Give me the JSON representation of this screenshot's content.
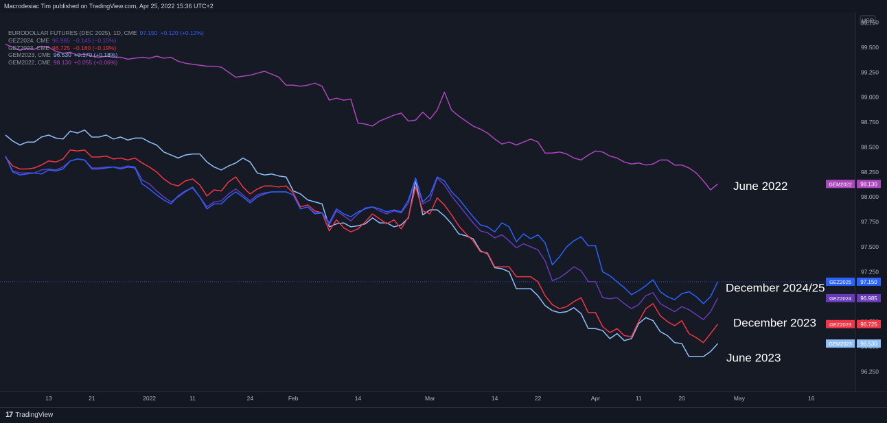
{
  "header": {
    "published_text": "Macrodesiac Tim published on TradingView.com, Apr 25, 2022 15:36 UTC+2"
  },
  "footer": {
    "brand": "TradingView",
    "logo_icon": "tradingview-logo-icon"
  },
  "legend": [
    {
      "symbol": "EURODOLLAR FUTURES (DEC 2025), 1D, CME",
      "value": "97.150",
      "change": "+0.120 (+0.12%)",
      "color": "#2962ff"
    },
    {
      "symbol": "GEZ2024, CME",
      "value": "96.985",
      "change": "−0.145 (−0.15%)",
      "color": "#673ab7"
    },
    {
      "symbol": "GEZ2023, CME",
      "value": "96.725",
      "change": "−0.180 (−0.19%)",
      "color": "#f23645"
    },
    {
      "symbol": "GEM2023, CME",
      "value": "96.530",
      "change": "+0.170 (+0.18%)",
      "color": "#90bff9"
    },
    {
      "symbol": "GEM2022, CME",
      "value": "98.130",
      "change": "+0.055 (+0.06%)",
      "color": "#ab47bc"
    }
  ],
  "chart_data": {
    "type": "line",
    "currency": "USD",
    "ylim": [
      96.05,
      99.85
    ],
    "y_ticks": [
      "99.750",
      "99.500",
      "99.250",
      "99.000",
      "98.750",
      "98.500",
      "98.250",
      "98.000",
      "97.750",
      "97.500",
      "97.250",
      "97.000",
      "96.750",
      "96.500",
      "96.250"
    ],
    "x_ticks": [
      {
        "label": "13",
        "bar": 6
      },
      {
        "label": "21",
        "bar": 12
      },
      {
        "label": "2022",
        "bar": 20
      },
      {
        "label": "11",
        "bar": 26
      },
      {
        "label": "24",
        "bar": 34
      },
      {
        "label": "Feb",
        "bar": 40
      },
      {
        "label": "14",
        "bar": 49
      },
      {
        "label": "Mar",
        "bar": 59
      },
      {
        "label": "14",
        "bar": 68
      },
      {
        "label": "22",
        "bar": 74
      },
      {
        "label": "Apr",
        "bar": 82
      },
      {
        "label": "11",
        "bar": 88
      },
      {
        "label": "20",
        "bar": 94
      },
      {
        "label": "May",
        "bar": 102
      },
      {
        "label": "16",
        "bar": 112
      }
    ],
    "series": [
      {
        "name": "GEM2022",
        "color": "#ab47bc",
        "last": 98.13,
        "annotation": "June 2022",
        "values": [
          99.53,
          99.5,
          99.47,
          99.49,
          99.48,
          99.51,
          99.5,
          99.46,
          99.44,
          99.45,
          99.42,
          99.43,
          99.41,
          99.4,
          99.41,
          99.4,
          99.4,
          99.38,
          99.39,
          99.4,
          99.39,
          99.41,
          99.39,
          99.4,
          99.36,
          99.34,
          99.33,
          99.32,
          99.31,
          99.31,
          99.3,
          99.25,
          99.2,
          99.21,
          99.22,
          99.24,
          99.26,
          99.23,
          99.2,
          99.12,
          99.12,
          99.11,
          99.12,
          99.14,
          99.11,
          98.97,
          98.99,
          98.97,
          98.98,
          98.74,
          98.73,
          98.71,
          98.76,
          98.79,
          98.82,
          98.84,
          98.76,
          98.77,
          98.85,
          98.78,
          98.87,
          99.05,
          98.87,
          98.81,
          98.76,
          98.71,
          98.68,
          98.64,
          98.58,
          98.53,
          98.55,
          98.52,
          98.55,
          98.58,
          98.55,
          98.44,
          98.44,
          98.45,
          98.43,
          98.39,
          98.37,
          98.42,
          98.46,
          98.45,
          98.41,
          98.39,
          98.35,
          98.33,
          98.34,
          98.32,
          98.33,
          98.37,
          98.37,
          98.32,
          98.32,
          98.29,
          98.24,
          98.16,
          98.07,
          98.13
        ]
      },
      {
        "name": "GEZ2025",
        "color": "#2962ff",
        "last": 97.15,
        "annotation": "December 2024/25",
        "values": [
          98.41,
          98.25,
          98.22,
          98.23,
          98.24,
          98.23,
          98.27,
          98.26,
          98.28,
          98.36,
          98.38,
          98.37,
          98.28,
          98.28,
          98.29,
          98.3,
          98.28,
          98.3,
          98.29,
          98.13,
          98.08,
          98.02,
          97.97,
          97.93,
          98.01,
          98.06,
          98.09,
          98.0,
          97.88,
          97.93,
          97.93,
          98.0,
          98.05,
          98.0,
          97.94,
          98.0,
          98.03,
          98.05,
          98.05,
          98.05,
          98.02,
          97.88,
          97.9,
          97.83,
          97.84,
          97.74,
          97.88,
          97.83,
          97.8,
          97.85,
          97.88,
          97.9,
          97.88,
          97.85,
          97.87,
          97.85,
          97.97,
          98.19,
          97.95,
          98.02,
          98.2,
          98.16,
          98.05,
          97.98,
          97.89,
          97.8,
          97.72,
          97.7,
          97.65,
          97.74,
          97.7,
          97.55,
          97.63,
          97.58,
          97.62,
          97.54,
          97.32,
          97.4,
          97.5,
          97.56,
          97.6,
          97.51,
          97.51,
          97.25,
          97.21,
          97.15,
          97.09,
          97.02,
          97.06,
          97.11,
          97.17,
          97.05,
          97.0,
          96.97,
          97.03,
          97.05,
          97.0,
          96.93,
          97.0,
          97.15
        ]
      },
      {
        "name": "GEZ2024",
        "color": "#673ab7",
        "last": 96.985,
        "annotation": "",
        "values": [
          98.41,
          98.26,
          98.24,
          98.24,
          98.24,
          98.27,
          98.28,
          98.27,
          98.3,
          98.36,
          98.38,
          98.37,
          98.29,
          98.29,
          98.3,
          98.3,
          98.29,
          98.31,
          98.3,
          98.17,
          98.13,
          98.06,
          98.0,
          97.95,
          98.0,
          98.05,
          98.1,
          98.0,
          97.9,
          97.95,
          97.96,
          98.03,
          98.08,
          98.02,
          97.96,
          98.02,
          98.04,
          98.05,
          98.05,
          98.05,
          98.02,
          97.88,
          97.9,
          97.84,
          97.84,
          97.72,
          97.86,
          97.81,
          97.76,
          97.83,
          97.89,
          97.9,
          97.86,
          97.83,
          97.86,
          97.84,
          97.94,
          98.18,
          97.93,
          97.97,
          98.19,
          98.12,
          98.01,
          97.92,
          97.83,
          97.74,
          97.66,
          97.64,
          97.59,
          97.62,
          97.56,
          97.49,
          97.53,
          97.5,
          97.47,
          97.36,
          97.16,
          97.19,
          97.24,
          97.3,
          97.26,
          97.15,
          97.15,
          96.99,
          96.98,
          96.99,
          96.93,
          96.88,
          96.92,
          97.01,
          97.04,
          96.93,
          96.89,
          96.85,
          96.9,
          96.87,
          96.82,
          96.77,
          96.85,
          96.985
        ]
      },
      {
        "name": "GEZ2023",
        "color": "#f23645",
        "last": 96.725,
        "annotation": "December 2023",
        "values": [
          98.4,
          98.31,
          98.28,
          98.28,
          98.29,
          98.32,
          98.36,
          98.35,
          98.38,
          98.47,
          98.46,
          98.47,
          98.4,
          98.4,
          98.41,
          98.38,
          98.39,
          98.37,
          98.39,
          98.34,
          98.3,
          98.25,
          98.18,
          98.13,
          98.11,
          98.16,
          98.18,
          98.12,
          98.01,
          98.07,
          98.06,
          98.15,
          98.2,
          98.1,
          98.03,
          98.08,
          98.11,
          98.11,
          98.1,
          98.11,
          98.04,
          97.9,
          97.92,
          97.86,
          97.84,
          97.66,
          97.77,
          97.69,
          97.65,
          97.68,
          97.75,
          97.83,
          97.78,
          97.73,
          97.77,
          97.68,
          97.8,
          98.1,
          97.86,
          97.83,
          97.99,
          97.92,
          97.82,
          97.71,
          97.63,
          97.56,
          97.45,
          97.44,
          97.3,
          97.3,
          97.3,
          97.2,
          97.2,
          97.2,
          97.15,
          97.01,
          96.92,
          96.88,
          96.9,
          96.95,
          96.99,
          96.84,
          96.84,
          96.7,
          96.64,
          96.68,
          96.61,
          96.6,
          96.75,
          96.88,
          96.93,
          96.81,
          96.75,
          96.71,
          96.76,
          96.63,
          96.59,
          96.54,
          96.63,
          96.725
        ]
      },
      {
        "name": "GEM2023",
        "color": "#90bff9",
        "last": 96.53,
        "annotation": "June 2023",
        "values": [
          98.62,
          98.56,
          98.52,
          98.55,
          98.55,
          98.6,
          98.62,
          98.59,
          98.58,
          98.66,
          98.64,
          98.67,
          98.6,
          98.6,
          98.62,
          98.58,
          98.6,
          98.57,
          98.59,
          98.59,
          98.55,
          98.52,
          98.45,
          98.42,
          98.39,
          98.42,
          98.43,
          98.43,
          98.35,
          98.3,
          98.27,
          98.31,
          98.34,
          98.39,
          98.35,
          98.24,
          98.22,
          98.23,
          98.21,
          98.2,
          98.06,
          98.03,
          97.97,
          97.95,
          97.93,
          97.7,
          97.73,
          97.74,
          97.7,
          97.71,
          97.73,
          97.79,
          97.74,
          97.74,
          97.7,
          97.72,
          97.79,
          98.16,
          97.82,
          97.87,
          97.87,
          97.81,
          97.73,
          97.63,
          97.61,
          97.58,
          97.46,
          97.43,
          97.29,
          97.28,
          97.25,
          97.08,
          97.08,
          97.08,
          97.01,
          96.91,
          96.86,
          96.84,
          96.85,
          96.89,
          96.83,
          96.68,
          96.68,
          96.66,
          96.58,
          96.63,
          96.56,
          96.58,
          96.73,
          96.79,
          96.76,
          96.65,
          96.61,
          96.54,
          96.53,
          96.4,
          96.4,
          96.4,
          96.45,
          96.53
        ]
      }
    ],
    "dotted_reference": 97.15
  }
}
